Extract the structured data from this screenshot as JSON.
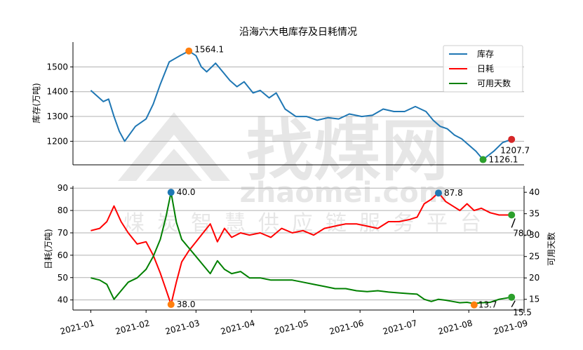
{
  "title": "沿海六大电库存及日耗情况",
  "watermark": {
    "brand": "找煤网",
    "domain": "zhaomei.com",
    "slogan": "煤炭智慧供应链服务平台"
  },
  "colors": {
    "stock": "#1f77b4",
    "daily": "#ff0000",
    "days": "#008000",
    "orange": "#ff7f0e",
    "red_marker": "#d62728",
    "green_marker": "#2ca02c"
  },
  "chart_data": [
    {
      "type": "line",
      "ylabel": "库存(万吨)",
      "ylim": [
        1105,
        1600
      ],
      "yticks": [
        "1200",
        "1300",
        "1400",
        "1500"
      ],
      "grid": true,
      "legend": {
        "placement": "top-right",
        "entries": [
          "库存",
          "日耗",
          "可用天数"
        ]
      },
      "series": [
        {
          "name": "库存",
          "key": "stock",
          "x": [
            "2021-01-01",
            "2021-01-08",
            "2021-01-11",
            "2021-01-14",
            "2021-01-17",
            "2021-01-20",
            "2021-01-23",
            "2021-01-26",
            "2021-02-01",
            "2021-02-05",
            "2021-02-09",
            "2021-02-14",
            "2021-02-20",
            "2021-02-25",
            "2021-03-01",
            "2021-03-04",
            "2021-03-07",
            "2021-03-12",
            "2021-03-16",
            "2021-03-20",
            "2021-03-24",
            "2021-03-28",
            "2021-04-02",
            "2021-04-06",
            "2021-04-11",
            "2021-04-15",
            "2021-04-20",
            "2021-04-26",
            "2021-05-02",
            "2021-05-08",
            "2021-05-14",
            "2021-05-20",
            "2021-05-26",
            "2021-06-02",
            "2021-06-08",
            "2021-06-14",
            "2021-06-20",
            "2021-06-26",
            "2021-07-02",
            "2021-07-08",
            "2021-07-12",
            "2021-07-16",
            "2021-07-20",
            "2021-07-24",
            "2021-07-28",
            "2021-08-01",
            "2021-08-05",
            "2021-08-09",
            "2021-08-15",
            "2021-08-20",
            "2021-08-25"
          ],
          "y": [
            1405,
            1360,
            1370,
            1300,
            1240,
            1200,
            1230,
            1260,
            1290,
            1350,
            1430,
            1520,
            1545,
            1564.1,
            1545,
            1500,
            1480,
            1515,
            1480,
            1445,
            1420,
            1440,
            1395,
            1405,
            1375,
            1395,
            1330,
            1300,
            1300,
            1285,
            1295,
            1290,
            1310,
            1300,
            1305,
            1330,
            1320,
            1320,
            1340,
            1320,
            1285,
            1260,
            1250,
            1225,
            1210,
            1185,
            1160,
            1126.1,
            1160,
            1195,
            1207.7
          ]
        }
      ],
      "annotations": [
        {
          "label": "1564.1",
          "x": "2021-02-25",
          "y": 1564.1,
          "marker": "orange"
        },
        {
          "label": "1126.1",
          "x": "2021-08-09",
          "y": 1126.1,
          "marker": "green_marker"
        },
        {
          "label": "1207.7",
          "x": "2021-08-25",
          "y": 1207.7,
          "marker": "red_marker"
        }
      ]
    },
    {
      "type": "line",
      "ylabel": "日耗(万吨)",
      "ylabel_right": "可用天数",
      "ylim": [
        35.5,
        91
      ],
      "yticks": [
        "40",
        "50",
        "60",
        "70",
        "80",
        "90"
      ],
      "ylim_right": [
        12.5,
        41.5
      ],
      "yticks_right": [
        "15",
        "20",
        "25",
        "30",
        "35",
        "40"
      ],
      "xticks": [
        "2021-01",
        "2021-02",
        "2021-03",
        "2021-04",
        "2021-05",
        "2021-06",
        "2021-07",
        "2021-08",
        "2021-09"
      ],
      "xlim": [
        "2020-12-22",
        "2021-09-01"
      ],
      "grid": true,
      "series": [
        {
          "name": "日耗",
          "key": "daily",
          "axis": "left",
          "x": [
            "2021-01-01",
            "2021-01-06",
            "2021-01-10",
            "2021-01-14",
            "2021-01-18",
            "2021-01-22",
            "2021-01-27",
            "2021-02-01",
            "2021-02-05",
            "2021-02-09",
            "2021-02-12",
            "2021-02-15",
            "2021-02-18",
            "2021-02-21",
            "2021-02-25",
            "2021-03-01",
            "2021-03-05",
            "2021-03-09",
            "2021-03-13",
            "2021-03-17",
            "2021-03-21",
            "2021-03-26",
            "2021-03-31",
            "2021-04-06",
            "2021-04-12",
            "2021-04-18",
            "2021-04-24",
            "2021-04-30",
            "2021-05-06",
            "2021-05-12",
            "2021-05-18",
            "2021-05-24",
            "2021-05-30",
            "2021-06-05",
            "2021-06-11",
            "2021-06-17",
            "2021-06-23",
            "2021-06-29",
            "2021-07-03",
            "2021-07-07",
            "2021-07-11",
            "2021-07-15",
            "2021-07-19",
            "2021-07-23",
            "2021-07-27",
            "2021-07-31",
            "2021-08-04",
            "2021-08-08",
            "2021-08-13",
            "2021-08-18",
            "2021-08-25"
          ],
          "y": [
            71,
            72,
            75,
            82,
            75,
            70,
            65,
            66,
            60,
            52,
            45,
            38,
            48,
            57,
            62,
            66,
            70,
            74,
            66,
            72,
            68,
            70,
            69,
            70,
            68,
            72,
            70,
            71,
            69,
            72,
            73,
            74,
            74,
            73,
            72,
            75,
            75,
            76,
            77,
            83,
            85,
            88,
            84,
            82,
            80,
            83,
            80,
            81,
            79,
            78,
            78
          ]
        },
        {
          "name": "可用天数",
          "key": "days",
          "axis": "right",
          "x": [
            "2021-01-01",
            "2021-01-06",
            "2021-01-10",
            "2021-01-14",
            "2021-01-18",
            "2021-01-22",
            "2021-01-27",
            "2021-02-01",
            "2021-02-05",
            "2021-02-09",
            "2021-02-12",
            "2021-02-15",
            "2021-02-18",
            "2021-02-21",
            "2021-02-25",
            "2021-03-01",
            "2021-03-05",
            "2021-03-09",
            "2021-03-13",
            "2021-03-17",
            "2021-03-21",
            "2021-03-26",
            "2021-03-31",
            "2021-04-06",
            "2021-04-12",
            "2021-04-18",
            "2021-04-24",
            "2021-04-30",
            "2021-05-06",
            "2021-05-12",
            "2021-05-18",
            "2021-05-24",
            "2021-05-30",
            "2021-06-05",
            "2021-06-11",
            "2021-06-17",
            "2021-06-23",
            "2021-06-29",
            "2021-07-03",
            "2021-07-07",
            "2021-07-11",
            "2021-07-15",
            "2021-07-19",
            "2021-07-23",
            "2021-07-27",
            "2021-07-31",
            "2021-08-04",
            "2021-08-08",
            "2021-08-13",
            "2021-08-18",
            "2021-08-25"
          ],
          "y": [
            20,
            19.5,
            18.5,
            15,
            17,
            19,
            20,
            22,
            25,
            29,
            34,
            40,
            33,
            29,
            27,
            25,
            23,
            21,
            24,
            22,
            21,
            21.5,
            20,
            20,
            19.5,
            19.5,
            19.5,
            19,
            18.5,
            18,
            17.5,
            17.5,
            17,
            16.8,
            17,
            16.7,
            16.5,
            16.3,
            16.2,
            15,
            14.5,
            15,
            14.8,
            14.5,
            14.2,
            14.3,
            14,
            14.2,
            14.3,
            15,
            15.5
          ]
        }
      ],
      "annotations": [
        {
          "label": "40.0",
          "x": "2021-02-15",
          "y": 40.0,
          "axis": "right",
          "marker": "stock"
        },
        {
          "label": "38.0",
          "x": "2021-02-15",
          "y": 38.0,
          "axis": "left",
          "marker": "orange"
        },
        {
          "label": "87.8",
          "x": "2021-07-15",
          "y": 87.8,
          "axis": "left",
          "marker": "stock"
        },
        {
          "label": "13.7",
          "x": "2021-08-04",
          "y": 13.7,
          "axis": "right",
          "marker": "orange"
        },
        {
          "label": "78.0",
          "x": "2021-08-25",
          "y": 78.0,
          "axis": "left",
          "marker": "green_marker"
        },
        {
          "label": "15.5",
          "x": "2021-08-25",
          "y": 15.5,
          "axis": "right",
          "marker": "green_marker"
        }
      ]
    }
  ]
}
